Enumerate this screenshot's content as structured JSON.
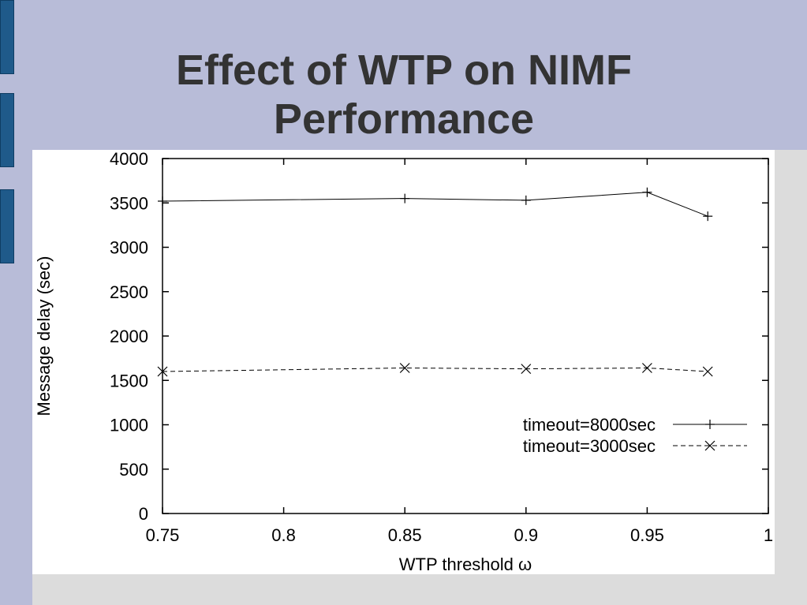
{
  "slide": {
    "title_line1": "Effect of WTP on NIMF",
    "title_line2": "Performance"
  },
  "colors": {
    "background": "#b8bcd8",
    "accent_tabs": "#1f5a8a",
    "title": "#333333",
    "plot_background": "#ffffff"
  },
  "chart_data": {
    "type": "line",
    "xlabel": "WTP threshold ω",
    "ylabel": "Message delay (sec)",
    "xlim": [
      0.75,
      1.0
    ],
    "ylim": [
      0,
      4000
    ],
    "xticks": [
      0.75,
      0.8,
      0.85,
      0.9,
      0.95,
      1
    ],
    "xtick_labels": [
      "0.75",
      "0.8",
      "0.85",
      "0.9",
      "0.95",
      "1"
    ],
    "yticks": [
      0,
      500,
      1000,
      1500,
      2000,
      2500,
      3000,
      3500,
      4000
    ],
    "ytick_labels": [
      "0",
      "500",
      "1000",
      "1500",
      "2000",
      "2500",
      "3000",
      "3500",
      "4000"
    ],
    "grid": false,
    "legend_position": "lower-right",
    "series": [
      {
        "name": "timeout=8000sec",
        "line_style": "solid",
        "marker": "plus",
        "x": [
          0.75,
          0.85,
          0.9,
          0.95,
          0.975
        ],
        "y": [
          3520,
          3550,
          3530,
          3620,
          3350
        ]
      },
      {
        "name": "timeout=3000sec",
        "line_style": "dashed",
        "marker": "cross",
        "x": [
          0.75,
          0.85,
          0.9,
          0.95,
          0.975
        ],
        "y": [
          1600,
          1640,
          1630,
          1640,
          1600
        ]
      }
    ]
  }
}
